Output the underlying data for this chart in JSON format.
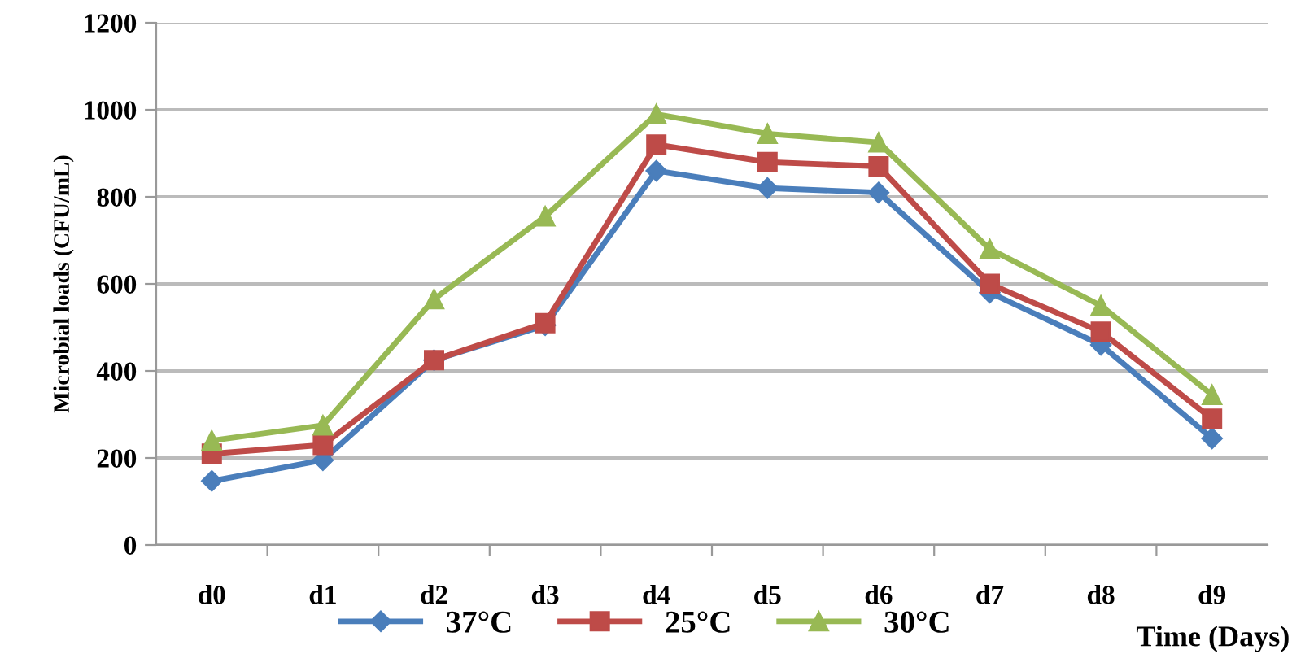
{
  "chart_data": {
    "type": "line",
    "ylabel": "Microbial loads (CFU/mL)",
    "xlabel": "Time (Days)",
    "categories": [
      "d0",
      "d1",
      "d2",
      "d3",
      "d4",
      "d5",
      "d6",
      "d7",
      "d8",
      "d9"
    ],
    "series": [
      {
        "name": "37°C",
        "color": "#4a7ebb",
        "marker": "diamond",
        "values": [
          147,
          195,
          425,
          505,
          860,
          820,
          810,
          580,
          460,
          245
        ]
      },
      {
        "name": "25°C",
        "color": "#be4b48",
        "marker": "square",
        "values": [
          210,
          230,
          425,
          510,
          920,
          880,
          870,
          600,
          490,
          290
        ]
      },
      {
        "name": "30°C",
        "color": "#98b954",
        "marker": "triangle",
        "values": [
          240,
          275,
          565,
          755,
          990,
          945,
          925,
          680,
          550,
          345
        ]
      }
    ],
    "ylim": [
      0,
      1200
    ],
    "yticks": [
      0,
      200,
      400,
      600,
      800,
      1000,
      1200
    ],
    "grid": "y",
    "legend": "bottom",
    "line_style": "solid"
  }
}
